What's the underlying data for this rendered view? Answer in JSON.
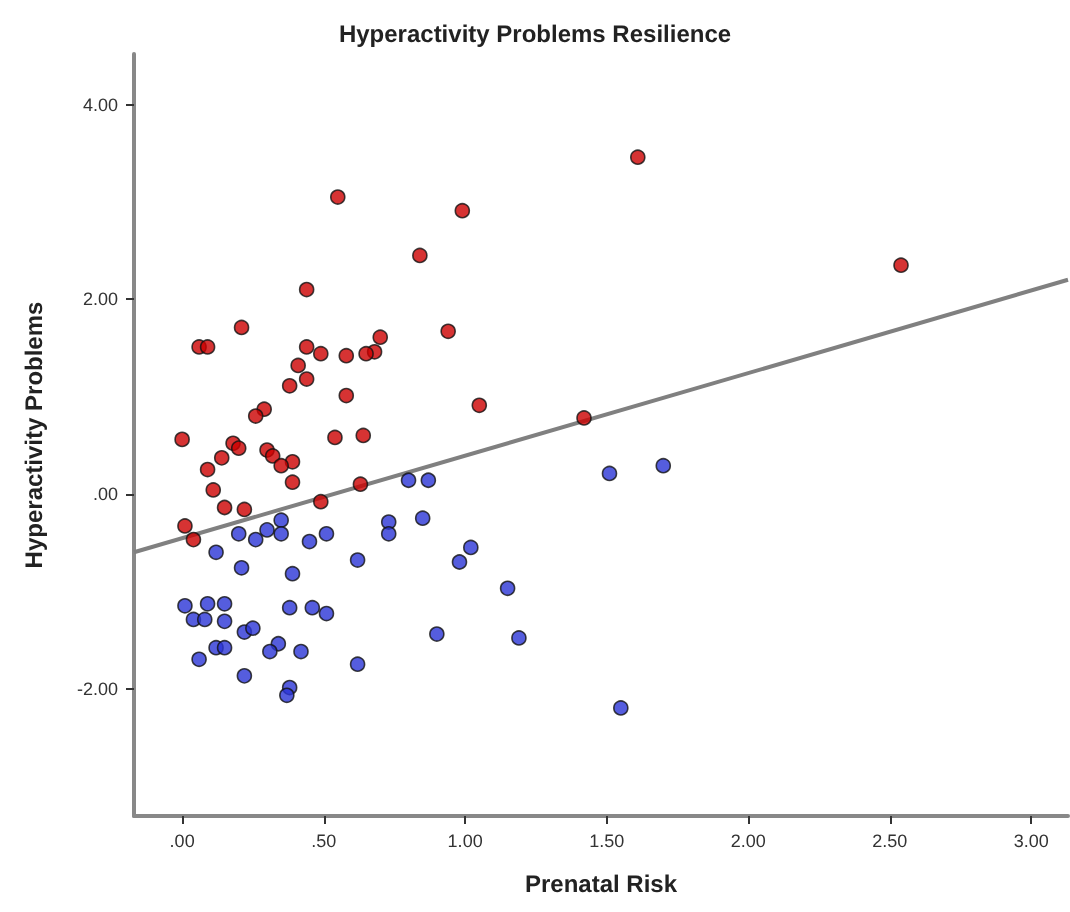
{
  "chart_data": {
    "type": "scatter",
    "title": "Hyperactivity Problems Resilience",
    "xlabel": "Prenatal Risk",
    "ylabel": "Hyperactivity Problems",
    "xlim": [
      -0.17,
      3.13
    ],
    "ylim": [
      -3.31,
      4.52
    ],
    "xticks": [
      {
        "value": 0,
        "label": ".00"
      },
      {
        "value": 0.5,
        "label": ".50"
      },
      {
        "value": 1,
        "label": "1.00"
      },
      {
        "value": 1.5,
        "label": "1.50"
      },
      {
        "value": 2,
        "label": "2.00"
      },
      {
        "value": 2.5,
        "label": "2.50"
      },
      {
        "value": 3,
        "label": "3.00"
      }
    ],
    "yticks": [
      {
        "value": -2,
        "label": "-2.00"
      },
      {
        "value": 0,
        "label": ".00"
      },
      {
        "value": 2,
        "label": "2.00"
      },
      {
        "value": 4,
        "label": "4.00"
      }
    ],
    "grid": false,
    "marker": "circle",
    "series": [
      {
        "color": "#cc0000",
        "x": [
          0.55,
          0.99,
          0.84,
          0.44,
          0.21,
          0.06,
          0.09,
          0.44,
          0.7,
          0.68,
          0.65,
          0.58,
          0.49,
          0.41,
          0.44,
          0.38,
          0.94,
          0.58,
          0.29,
          0.26,
          1.05,
          0,
          0.18,
          0.2,
          0.54,
          0.64,
          0.3,
          0.32,
          0.39,
          0.35,
          0.09,
          0.14,
          0.11,
          0.39,
          0.15,
          0.22,
          0.49,
          0.63,
          0.01,
          0.04,
          1.61,
          1.42,
          2.54
        ],
        "values": [
          3.05,
          2.91,
          2.45,
          2.1,
          1.71,
          1.51,
          1.51,
          1.51,
          1.61,
          1.46,
          1.44,
          1.42,
          1.44,
          1.32,
          1.18,
          1.11,
          1.67,
          1.01,
          0.87,
          0.8,
          0.91,
          0.56,
          0.52,
          0.47,
          0.58,
          0.6,
          0.45,
          0.39,
          0.33,
          0.29,
          0.25,
          0.37,
          0.04,
          0.12,
          -0.14,
          -0.16,
          -0.08,
          0.1,
          -0.33,
          -0.47,
          3.46,
          0.78,
          2.35
        ]
      },
      {
        "color": "#2b35d6",
        "x": [
          0.8,
          0.87,
          0.35,
          0.3,
          0.35,
          0.2,
          0.26,
          0.45,
          0.51,
          0.73,
          0.73,
          0.85,
          0.12,
          0.21,
          0.39,
          0.62,
          0.98,
          1.02,
          0.01,
          0.09,
          0.15,
          0.04,
          0.08,
          0.15,
          0.38,
          0.46,
          0.51,
          1.15,
          0.22,
          0.25,
          0.34,
          0.31,
          0.42,
          0.12,
          0.15,
          0.06,
          0.62,
          0.9,
          1.19,
          0.22,
          0.38,
          0.37,
          1.51,
          1.7,
          1.55
        ],
        "values": [
          0.14,
          0.14,
          -0.27,
          -0.37,
          -0.41,
          -0.41,
          -0.47,
          -0.49,
          -0.41,
          -0.29,
          -0.41,
          -0.25,
          -0.6,
          -0.76,
          -0.82,
          -0.68,
          -0.7,
          -0.55,
          -1.15,
          -1.13,
          -1.13,
          -1.29,
          -1.29,
          -1.31,
          -1.17,
          -1.17,
          -1.23,
          -0.97,
          -1.42,
          -1.38,
          -1.54,
          -1.62,
          -1.62,
          -1.58,
          -1.58,
          -1.7,
          -1.75,
          -1.44,
          -1.48,
          -1.87,
          -1.99,
          -2.07,
          0.21,
          0.29,
          -2.2
        ]
      },
      {
        "type": "line",
        "color": "#808080",
        "marker": "none",
        "x": [
          -0.17,
          3.13
        ],
        "values": [
          -0.6,
          2.2
        ]
      }
    ]
  }
}
